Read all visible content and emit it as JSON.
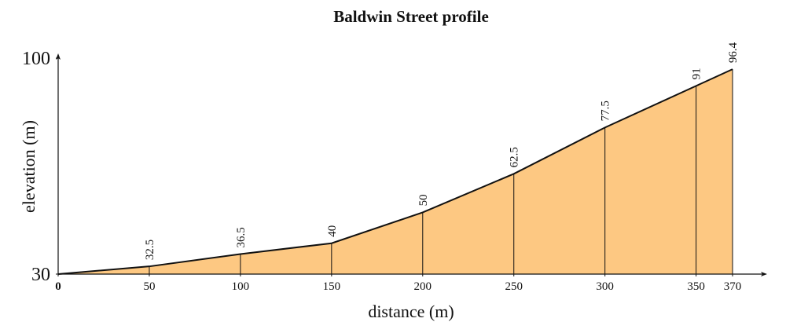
{
  "chart_data": {
    "type": "area",
    "title": "Baldwin Street profile",
    "x_label": "distance (m)",
    "y_label": "elevation (m)",
    "x": [
      0,
      50,
      100,
      150,
      200,
      250,
      300,
      350,
      370
    ],
    "values": [
      30,
      32.5,
      36.5,
      40,
      50,
      62.5,
      77.5,
      91,
      96.4
    ],
    "value_labels": [
      null,
      "32.5",
      "36.5",
      "40",
      "50",
      "62.5",
      "77.5",
      "91",
      "96.4"
    ],
    "color": "#fdc882",
    "xlim": [
      0,
      370
    ],
    "xticks": [
      0,
      50,
      100,
      150,
      200,
      250,
      300,
      350,
      370
    ],
    "ylim": [
      30,
      100
    ],
    "yticks": [
      30,
      100
    ]
  }
}
